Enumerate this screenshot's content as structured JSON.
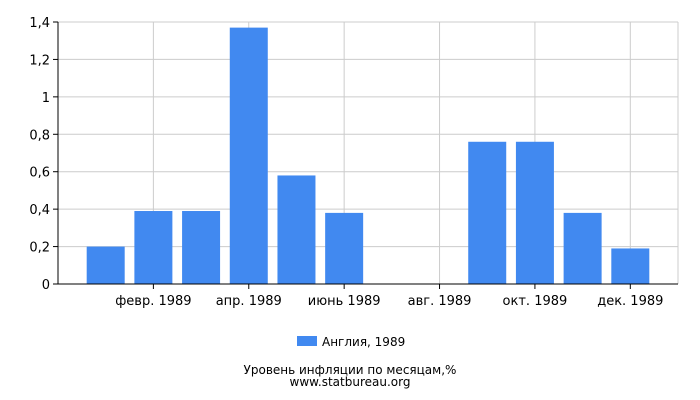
{
  "chart_data": {
    "type": "bar",
    "categories": [
      "янв. 1989",
      "февр. 1989",
      "март 1989",
      "апр. 1989",
      "май 1989",
      "июнь 1989",
      "июль 1989",
      "авг. 1989",
      "сент. 1989",
      "окт. 1989",
      "нояб. 1989",
      "дек. 1989"
    ],
    "x_tick_labels": [
      "февр. 1989",
      "апр. 1989",
      "июнь 1989",
      "авг. 1989",
      "окт. 1989",
      "дек. 1989"
    ],
    "series": [
      {
        "name": "Англия, 1989",
        "values": [
          0.2,
          0.39,
          0.39,
          1.37,
          0.58,
          0.38,
          0,
          0,
          0.76,
          0.76,
          0.38,
          0.19
        ]
      }
    ],
    "ylim": [
      0,
      1.4
    ],
    "y_ticks": [
      "0",
      "0,2",
      "0,4",
      "0,6",
      "0,8",
      "1",
      "1,2",
      "1,4"
    ],
    "grid": true,
    "legend_position": "bottom-center",
    "bar_color": "#4189f0",
    "grid_color": "#cccccc"
  },
  "caption": {
    "line1": "Уровень инфляции по месяцам,%",
    "line2": "www.statbureau.org"
  }
}
